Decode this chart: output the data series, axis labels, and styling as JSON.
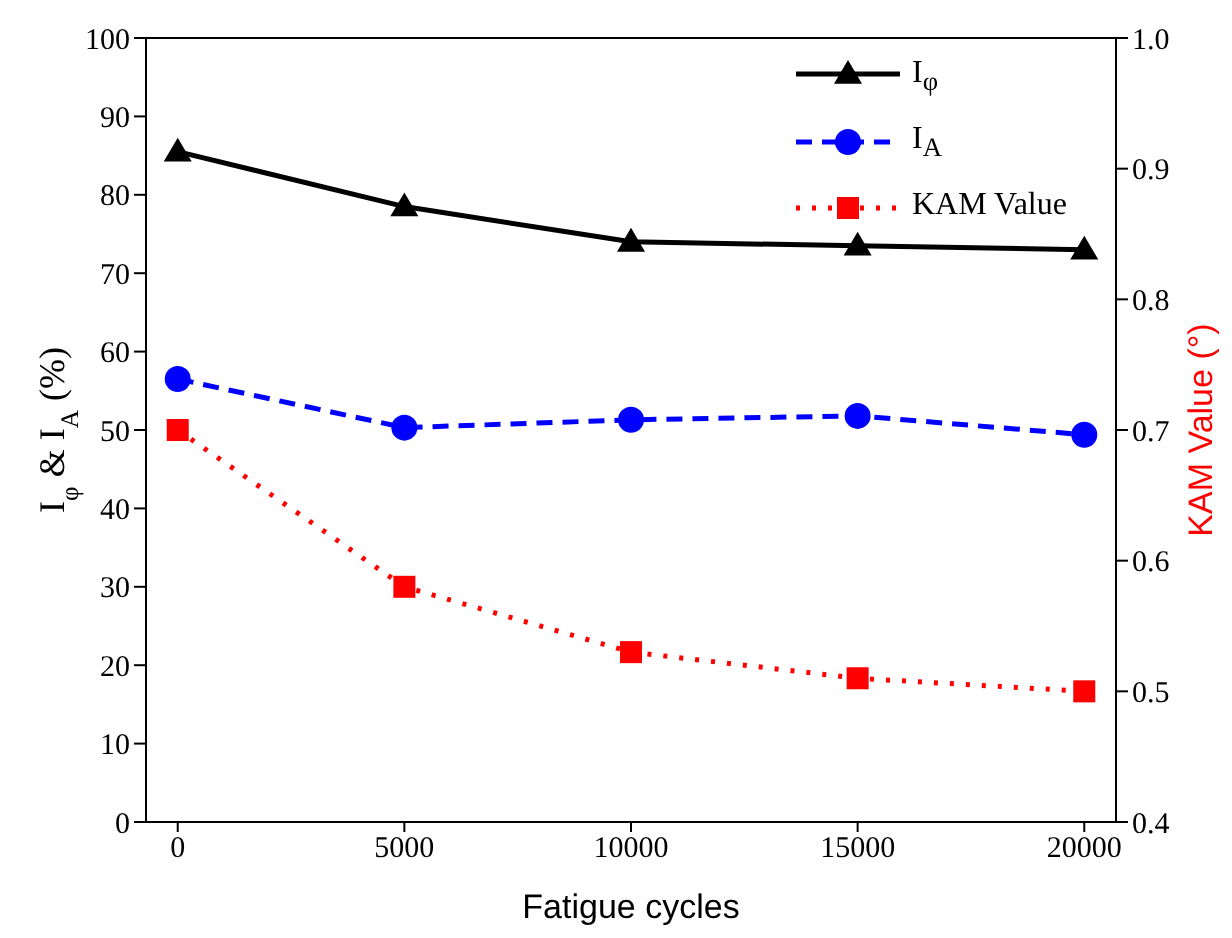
{
  "chart_data": {
    "type": "line",
    "xlabel": "Fatigue cycles",
    "ylabel": "I$_{φ}$ & I$_{A}$  (%)",
    "y2label": "KAM Value (°)",
    "x": [
      0,
      5000,
      10000,
      15000,
      20000
    ],
    "xlim": [
      -700,
      20700
    ],
    "xticks": [
      0,
      5000,
      10000,
      15000,
      20000
    ],
    "ylim": [
      0,
      100
    ],
    "yticks": [
      0,
      10,
      20,
      30,
      40,
      50,
      60,
      70,
      80,
      90,
      100
    ],
    "y2lim": [
      0.4,
      1.0
    ],
    "y2ticks": [
      0.4,
      0.5,
      0.6,
      0.7,
      0.8,
      0.9,
      {
        "value": 1,
        "label": "1.0"
      }
    ],
    "legend": "top right",
    "grid": false,
    "series": [
      {
        "name": "I$_{φ}$",
        "color": "#000000",
        "marker": "triangle",
        "line_style": "solid",
        "values": [
          85.5,
          78.5,
          74,
          73.5,
          73
        ]
      },
      {
        "name": "I$_{A}$",
        "color": "#0000ff",
        "marker": "circle",
        "line_style": "dashed",
        "values": [
          56.5,
          50.3,
          51.3,
          51.8,
          49.4
        ]
      },
      {
        "name": "KAM Value",
        "color": "#ff0000",
        "marker": "square",
        "line_style": "dotted",
        "axis": "y2",
        "values": [
          0.7,
          0.58,
          0.53,
          0.51,
          0.5
        ]
      }
    ]
  }
}
